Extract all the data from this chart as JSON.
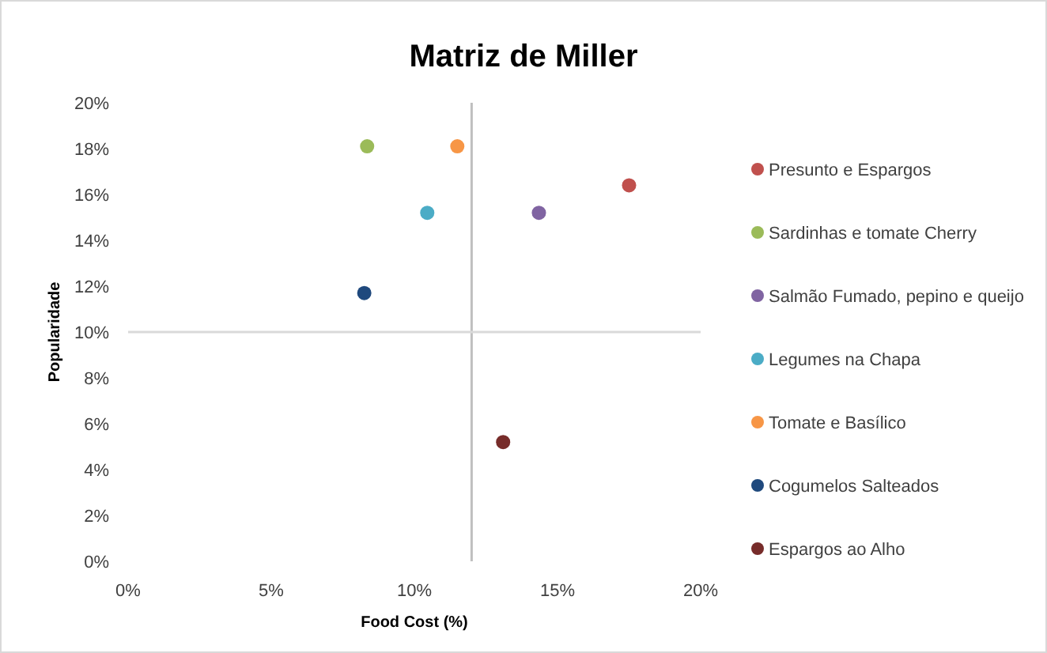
{
  "chart_data": {
    "type": "scatter",
    "title": "Matriz de Miller",
    "xlabel": "Food Cost (%)",
    "ylabel": "Popularidade",
    "xlim": [
      0,
      20
    ],
    "xticks": [
      {
        "value": 0,
        "label": "0%"
      },
      {
        "value": 5,
        "label": "5%"
      },
      {
        "value": 10,
        "label": "10%"
      },
      {
        "value": 15,
        "label": "15%"
      },
      {
        "value": 20,
        "label": "20%"
      }
    ],
    "ylim": [
      0,
      20
    ],
    "yticks": [
      {
        "value": 0,
        "label": "0%"
      },
      {
        "value": 2,
        "label": "2%"
      },
      {
        "value": 4,
        "label": "4%"
      },
      {
        "value": 6,
        "label": "6%"
      },
      {
        "value": 8,
        "label": "8%"
      },
      {
        "value": 10,
        "label": "10%"
      },
      {
        "value": 12,
        "label": "12%"
      },
      {
        "value": 14,
        "label": "14%"
      },
      {
        "value": 16,
        "label": "16%"
      },
      {
        "value": 18,
        "label": "18%"
      },
      {
        "value": 20,
        "label": "20%"
      }
    ],
    "series": [
      {
        "name": "Presunto e Espargos",
        "color": "#c0504d",
        "x": [
          17.5
        ],
        "values": [
          16.4
        ]
      },
      {
        "name": "Sardinhas e tomate Cherry",
        "color": "#9bbb59",
        "x": [
          8.35
        ],
        "values": [
          18.1
        ]
      },
      {
        "name": "Salmão Fumado, pepino e queijo",
        "color": "#8064a2",
        "x": [
          14.35
        ],
        "values": [
          15.2
        ]
      },
      {
        "name": "Legumes na Chapa",
        "color": "#4bacc6",
        "x": [
          10.45
        ],
        "values": [
          15.2
        ]
      },
      {
        "name": "Tomate e Basílico",
        "color": "#f79646",
        "x": [
          11.5
        ],
        "values": [
          18.1
        ]
      },
      {
        "name": "Cogumelos Salteados",
        "color": "#1f497d",
        "x": [
          8.25
        ],
        "values": [
          11.7
        ]
      },
      {
        "name": "Espargos ao Alho",
        "color": "#772c2a",
        "x": [
          13.1
        ],
        "values": [
          5.2
        ]
      }
    ],
    "ref_lines": [
      {
        "axis": "x",
        "value": 12,
        "color": "#bfbfbf"
      },
      {
        "axis": "y",
        "value": 10,
        "color": "#d9d9d9"
      }
    ],
    "grid": false,
    "legend": "right",
    "marker": "circle"
  }
}
